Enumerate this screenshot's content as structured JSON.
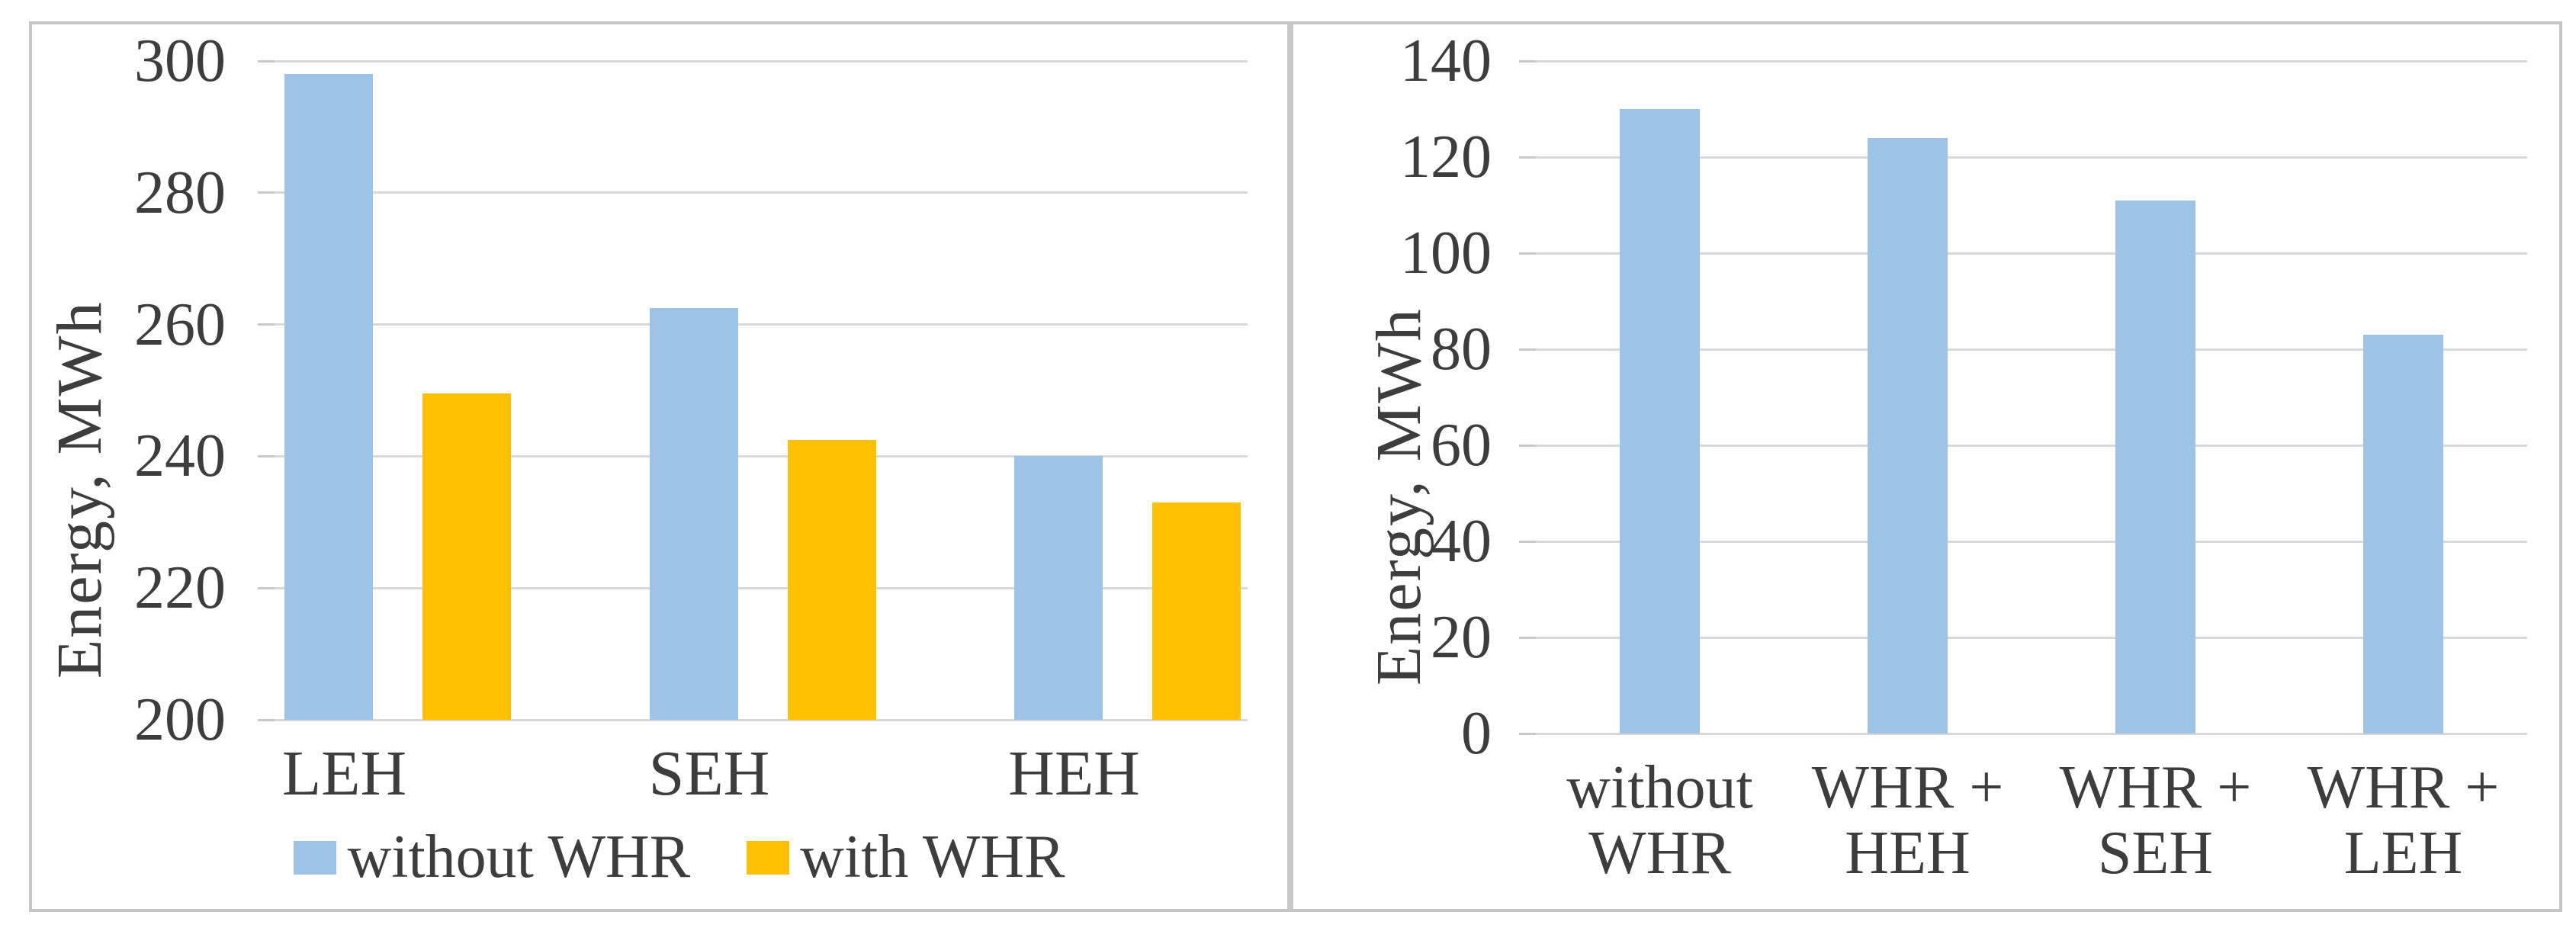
{
  "figure": {
    "background": "#ffffff",
    "panel_border_color": "#c6c6c6",
    "text_color": "#3d3d3d",
    "gridline_color": "#d9d9d9",
    "series_colors": {
      "without_whr": "#9dc3e6",
      "with_whr": "#ffc000"
    }
  },
  "chart_data": [
    {
      "id": "energy-by-heater-type",
      "type": "bar",
      "title": "",
      "xlabel": "",
      "ylabel": "Energy, MWh",
      "ylim": [
        200,
        300
      ],
      "yticks": [
        300,
        280,
        260,
        240,
        220,
        200
      ],
      "grid": true,
      "legend_position": "bottom",
      "categories": [
        "LEH",
        "SEH",
        "HEH"
      ],
      "series": [
        {
          "name": "without WHR",
          "color": "#9dc3e6",
          "values": [
            298,
            262.5,
            240
          ]
        },
        {
          "name": "with WHR",
          "color": "#ffc000",
          "values": [
            249.5,
            242.5,
            233
          ]
        }
      ]
    },
    {
      "id": "energy-by-whr-combination",
      "type": "bar",
      "title": "",
      "xlabel": "",
      "ylabel": "Energy, MWh",
      "ylim": [
        0,
        140
      ],
      "yticks": [
        140,
        120,
        100,
        80,
        60,
        40,
        20,
        0
      ],
      "grid": true,
      "legend_position": "none",
      "categories": [
        "without\nWHR",
        "WHR +\nHEH",
        "WHR +\nSEH",
        "WHR +\nLEH"
      ],
      "series": [
        {
          "name": "without WHR",
          "color": "#9dc3e6",
          "values": [
            130,
            124,
            111,
            83
          ]
        }
      ]
    }
  ]
}
